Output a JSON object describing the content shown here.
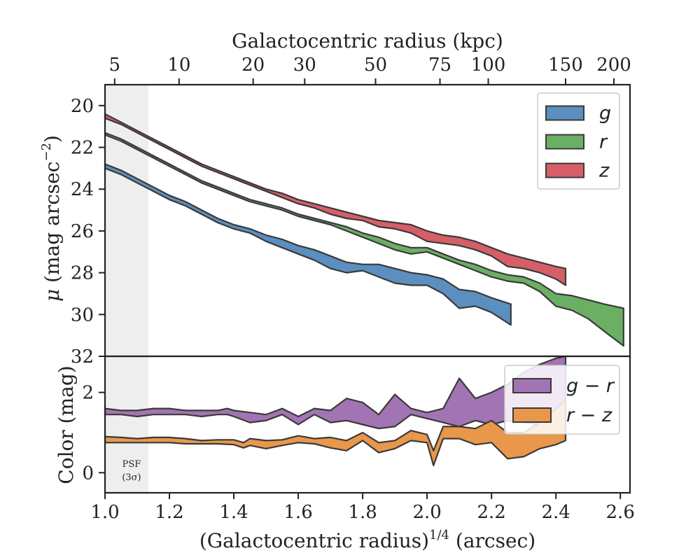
{
  "chart_data": [
    {
      "type": "area",
      "panel": "top",
      "top_axis": {
        "label": "Galactocentric radius (kpc)",
        "ticks": [
          {
            "label": "5",
            "x": 1.03
          },
          {
            "label": "10",
            "x": 1.23
          },
          {
            "label": "20",
            "x": 1.46
          },
          {
            "label": "30",
            "x": 1.62
          },
          {
            "label": "50",
            "x": 1.84
          },
          {
            "label": "75",
            "x": 2.04
          },
          {
            "label": "100",
            "x": 2.19
          },
          {
            "label": "150",
            "x": 2.43
          },
          {
            "label": "200",
            "x": 2.58
          }
        ]
      },
      "ylabel": "μ (mag arcsec⁻²)",
      "ylim": [
        32,
        19
      ],
      "xlim": [
        1.0,
        2.63
      ],
      "yticks": [
        20,
        22,
        24,
        26,
        28,
        30,
        32
      ],
      "psf_region": [
        1.0,
        1.135
      ],
      "legend": "top-right",
      "series": [
        {
          "name": "g",
          "color": "#5b8fbf",
          "x": [
            1.0,
            1.05,
            1.1,
            1.15,
            1.2,
            1.25,
            1.3,
            1.35,
            1.4,
            1.45,
            1.5,
            1.55,
            1.6,
            1.65,
            1.7,
            1.75,
            1.8,
            1.85,
            1.9,
            1.95,
            2.0,
            2.05,
            2.1,
            2.15,
            2.2,
            2.26
          ],
          "low": [
            22.8,
            23.1,
            23.5,
            23.9,
            24.3,
            24.6,
            25.0,
            25.4,
            25.7,
            25.9,
            26.2,
            26.4,
            26.7,
            26.9,
            27.2,
            27.5,
            27.6,
            27.6,
            27.8,
            28.0,
            28.1,
            28.3,
            28.8,
            28.9,
            29.2,
            29.5
          ],
          "high": [
            23.0,
            23.3,
            23.7,
            24.1,
            24.5,
            24.8,
            25.2,
            25.6,
            25.9,
            26.1,
            26.5,
            26.8,
            27.1,
            27.4,
            27.8,
            28.0,
            27.9,
            28.2,
            28.5,
            28.6,
            28.6,
            29.0,
            29.7,
            29.6,
            29.9,
            30.5
          ]
        },
        {
          "name": "r",
          "color": "#6aaf64",
          "x": [
            1.0,
            1.05,
            1.1,
            1.15,
            1.2,
            1.25,
            1.3,
            1.35,
            1.4,
            1.45,
            1.5,
            1.55,
            1.6,
            1.65,
            1.7,
            1.75,
            1.8,
            1.85,
            1.9,
            1.95,
            2.0,
            2.05,
            2.1,
            2.15,
            2.2,
            2.25,
            2.3,
            2.35,
            2.4,
            2.45,
            2.5,
            2.55,
            2.61
          ],
          "low": [
            21.3,
            21.6,
            22.0,
            22.4,
            22.8,
            23.2,
            23.6,
            23.9,
            24.2,
            24.5,
            24.7,
            24.9,
            25.2,
            25.4,
            25.6,
            25.8,
            26.1,
            26.3,
            26.6,
            26.8,
            26.8,
            27.1,
            27.4,
            27.6,
            27.9,
            28.1,
            28.2,
            28.5,
            29.0,
            29.1,
            29.3,
            29.5,
            29.7
          ],
          "high": [
            21.4,
            21.7,
            22.1,
            22.5,
            22.9,
            23.3,
            23.7,
            24.0,
            24.3,
            24.6,
            24.8,
            25.0,
            25.3,
            25.5,
            25.7,
            26.0,
            26.3,
            26.6,
            26.9,
            27.1,
            27.0,
            27.3,
            27.6,
            27.9,
            28.2,
            28.4,
            28.5,
            28.9,
            29.6,
            29.8,
            30.2,
            30.8,
            31.5
          ]
        },
        {
          "name": "z",
          "color": "#d65f67",
          "x": [
            1.0,
            1.05,
            1.1,
            1.15,
            1.2,
            1.25,
            1.3,
            1.35,
            1.4,
            1.45,
            1.5,
            1.55,
            1.6,
            1.65,
            1.7,
            1.75,
            1.8,
            1.85,
            1.9,
            1.95,
            2.0,
            2.05,
            2.1,
            2.15,
            2.2,
            2.25,
            2.3,
            2.35,
            2.4,
            2.43
          ],
          "low": [
            20.4,
            20.8,
            21.2,
            21.6,
            22.0,
            22.4,
            22.8,
            23.1,
            23.4,
            23.7,
            24.0,
            24.2,
            24.5,
            24.7,
            24.9,
            25.1,
            25.3,
            25.5,
            25.6,
            25.7,
            26.0,
            26.2,
            26.3,
            26.5,
            26.8,
            27.1,
            27.3,
            27.5,
            27.7,
            27.8
          ],
          "high": [
            20.6,
            20.9,
            21.3,
            21.7,
            22.1,
            22.5,
            22.9,
            23.2,
            23.5,
            23.8,
            24.1,
            24.4,
            24.7,
            24.9,
            25.2,
            25.4,
            25.5,
            25.8,
            25.9,
            26.1,
            26.5,
            26.6,
            26.7,
            26.9,
            27.2,
            27.7,
            27.8,
            28.0,
            28.3,
            28.6
          ]
        }
      ]
    },
    {
      "type": "area",
      "panel": "bottom",
      "xlabel": "(Galactocentric radius)^1/4 (arcsec)",
      "ylabel": "Color (mag)",
      "ylim": [
        -0.5,
        2.9
      ],
      "xlim": [
        1.0,
        2.63
      ],
      "xticks": [
        1.0,
        1.2,
        1.4,
        1.6,
        1.8,
        2.0,
        2.2,
        2.4,
        2.6
      ],
      "yticks": [
        0,
        2
      ],
      "psf_region": [
        1.0,
        1.135
      ],
      "psf_label": [
        "PSF",
        "(3σ)"
      ],
      "legend": "top-right",
      "series": [
        {
          "name": "g − r",
          "color": "#a274b3",
          "x": [
            1.0,
            1.05,
            1.1,
            1.15,
            1.2,
            1.25,
            1.3,
            1.35,
            1.38,
            1.4,
            1.45,
            1.5,
            1.55,
            1.6,
            1.65,
            1.7,
            1.75,
            1.8,
            1.85,
            1.9,
            1.95,
            2.0,
            2.05,
            2.1,
            2.15,
            2.2,
            2.25,
            2.3,
            2.35,
            2.4,
            2.43
          ],
          "low": [
            1.45,
            1.45,
            1.4,
            1.45,
            1.45,
            1.45,
            1.4,
            1.45,
            1.45,
            1.4,
            1.25,
            1.3,
            1.45,
            1.2,
            1.45,
            1.25,
            1.3,
            1.2,
            1.1,
            1.15,
            1.45,
            1.35,
            1.25,
            1.15,
            1.3,
            1.2,
            1.3,
            1.25,
            1.2,
            1.25,
            1.2
          ],
          "high": [
            1.6,
            1.55,
            1.55,
            1.6,
            1.6,
            1.55,
            1.55,
            1.55,
            1.6,
            1.55,
            1.5,
            1.45,
            1.6,
            1.4,
            1.6,
            1.55,
            1.85,
            1.75,
            1.45,
            1.95,
            1.6,
            1.5,
            1.6,
            2.35,
            1.85,
            2.0,
            2.2,
            2.5,
            2.7,
            2.85,
            2.9
          ]
        },
        {
          "name": "r − z",
          "color": "#e9974b",
          "x": [
            1.0,
            1.05,
            1.1,
            1.15,
            1.2,
            1.25,
            1.3,
            1.35,
            1.4,
            1.43,
            1.45,
            1.5,
            1.55,
            1.6,
            1.65,
            1.7,
            1.75,
            1.8,
            1.85,
            1.9,
            1.95,
            2.0,
            2.02,
            2.05,
            2.1,
            2.15,
            2.2,
            2.25,
            2.3,
            2.35,
            2.4,
            2.43
          ],
          "low": [
            0.75,
            0.75,
            0.75,
            0.75,
            0.75,
            0.72,
            0.72,
            0.72,
            0.7,
            0.62,
            0.68,
            0.6,
            0.68,
            0.75,
            0.72,
            0.62,
            0.55,
            0.8,
            0.5,
            0.6,
            0.8,
            0.75,
            0.18,
            0.85,
            0.85,
            0.7,
            0.75,
            0.35,
            0.4,
            0.6,
            0.7,
            0.8
          ],
          "high": [
            0.9,
            0.88,
            0.85,
            0.88,
            0.88,
            0.85,
            0.8,
            0.82,
            0.82,
            0.75,
            0.85,
            0.8,
            0.82,
            0.92,
            0.85,
            0.88,
            0.8,
            1.0,
            0.75,
            0.8,
            1.05,
            0.95,
            0.55,
            1.15,
            1.15,
            1.1,
            1.3,
            1.0,
            1.0,
            1.25,
            1.6,
            1.8
          ]
        }
      ]
    }
  ]
}
